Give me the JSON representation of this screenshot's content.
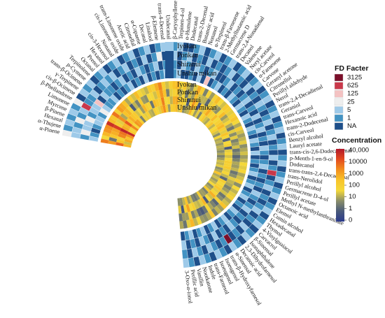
{
  "chart_data": {
    "type": "heatmap",
    "layout": "circular",
    "compounds": [
      "α-Pinene",
      "α-Thujene",
      "Hexanal",
      "β-Pinene",
      "Myrcene",
      "Limonene",
      "β-Phellandrene",
      "cis-β-Ocimene",
      "γ-Terpinene",
      "trans-β-Ocimene",
      "p-Cymene",
      "Terpinolene",
      "Octanal",
      "Prenol",
      "Hexanol",
      "cis-3-Hexenol",
      "Nonanal",
      "cis-Limonene oxide",
      "trans-Limonene oxide",
      "Acetic acid",
      "Citronellal",
      "α-Copaene",
      "Decanal",
      "Linalool",
      "β-Elemene",
      "trans-4-Decenal",
      "Undecanal",
      "β-Caryophyllene",
      "Terpinen-4-ol",
      "α-Humulene",
      "Dodecanal",
      "trans-2-Decenal",
      "Butanoic acid",
      "Nonanol",
      "α-Terpineol",
      "trans-β-Farnesene",
      "2-Methylbutanoic acid",
      "Germacrene D",
      "trans-2,4-Nonadienal",
      "Decanol",
      "Valencene",
      "Neryl acetate",
      "cis-Carveol",
      "α-Farnesene",
      "Carvone",
      "Geranyl acetone",
      "Citronellol",
      "Perillyl aldehyde",
      "Nerol",
      "trans-2,4-Decadienal",
      "Geraniol",
      "trans-Carveol",
      "Hexanoic acid",
      "trans-2-Dodecenal",
      "cis-Carveol",
      "Benzyl alcohol",
      "Lauryl acetate",
      "trans-cis-2,6-Dodecadienal",
      "p-Menth-1-en-9-ol",
      "Dodecanol",
      "trans-trans-2,4-Decadienal",
      "trans-Nerolidol",
      "Perillyl alcohol",
      "Germacrene D-4-ol",
      "Perillyl acetate",
      "Methyl N-methylanthranilate",
      "Octanoic acid",
      "Elemol",
      "Cumin alcohol",
      "Hexadecanal",
      "Thymol",
      "4-Vinylguaiacol",
      "Carvacrol",
      "β-Sinensal",
      "Isonaphthalene",
      "2,3-Dihydrofarnesol",
      "Decanoic acid",
      "α-Sinensal",
      "trans-β-Hydroxyfarnesol",
      "Isoeugenol",
      "Isoeugenol",
      "trans-Farnesol",
      "Indole",
      "Nootkatone",
      "Vanillin",
      "Perillic acid",
      "3-Oxo-α-ionol"
    ],
    "samples": [
      "Iyokan",
      "Ponkan",
      "Shiranui",
      "Unshiu mikan"
    ],
    "fd_legend": {
      "title": "FD Facter",
      "levels": [
        "3125",
        "625",
        "125",
        "25",
        "5",
        "1",
        "NA"
      ],
      "colors": [
        "#7b0f2a",
        "#c9384a",
        "#f4c2c2",
        "#eeeeee",
        "#9ecae9",
        "#4393c3",
        "#1e4f8a"
      ]
    },
    "fd_grid": [
      [
        3,
        4,
        5,
        4
      ],
      [
        5,
        4,
        3,
        5
      ],
      [
        4,
        5,
        4,
        6
      ],
      [
        5,
        3,
        4,
        5
      ],
      [
        4,
        5,
        3,
        4
      ],
      [
        5,
        4,
        5,
        4
      ],
      [
        3,
        1,
        4,
        5
      ],
      [
        6,
        5,
        4,
        3
      ],
      [
        4,
        5,
        2,
        4
      ],
      [
        5,
        4,
        6,
        5
      ],
      [
        4,
        6,
        4,
        5
      ],
      [
        6,
        5,
        5,
        4
      ],
      [
        5,
        4,
        5,
        6
      ],
      [
        4,
        5,
        6,
        5
      ],
      [
        6,
        4,
        5,
        6
      ],
      [
        5,
        6,
        4,
        5
      ],
      [
        4,
        5,
        6,
        4
      ],
      [
        6,
        4,
        5,
        6
      ],
      [
        5,
        6,
        6,
        5
      ],
      [
        4,
        5,
        4,
        6
      ],
      [
        6,
        6,
        5,
        4
      ],
      [
        5,
        4,
        6,
        6
      ],
      [
        4,
        6,
        5,
        5
      ],
      [
        6,
        5,
        4,
        6
      ],
      [
        5,
        3,
        6,
        5
      ],
      [
        4,
        6,
        5,
        4
      ],
      [
        6,
        5,
        6,
        6
      ],
      [
        5,
        4,
        5,
        5
      ],
      [
        4,
        6,
        6,
        4
      ],
      [
        6,
        5,
        4,
        6
      ],
      [
        6,
        4,
        5,
        6
      ],
      [
        5,
        6,
        6,
        5
      ],
      [
        4,
        5,
        4,
        6
      ],
      [
        6,
        6,
        5,
        4
      ],
      [
        5,
        4,
        6,
        6
      ],
      [
        4,
        6,
        5,
        2
      ],
      [
        6,
        5,
        4,
        6
      ],
      [
        5,
        6,
        6,
        5
      ],
      [
        4,
        5,
        6,
        4
      ],
      [
        6,
        4,
        5,
        6
      ],
      [
        5,
        6,
        4,
        5
      ],
      [
        4,
        5,
        6,
        6
      ],
      [
        6,
        6,
        5,
        4
      ],
      [
        5,
        4,
        6,
        5
      ],
      [
        4,
        6,
        5,
        6
      ],
      [
        6,
        5,
        4,
        4
      ],
      [
        5,
        6,
        6,
        5
      ],
      [
        4,
        4,
        5,
        6
      ],
      [
        6,
        5,
        6,
        4
      ],
      [
        5,
        6,
        4,
        5
      ],
      [
        4,
        5,
        6,
        6
      ],
      [
        6,
        4,
        5,
        4
      ],
      [
        5,
        6,
        4,
        5
      ],
      [
        4,
        5,
        6,
        6
      ],
      [
        6,
        4,
        5,
        4
      ],
      [
        5,
        6,
        6,
        5
      ],
      [
        4,
        5,
        4,
        6
      ],
      [
        6,
        6,
        5,
        4
      ],
      [
        5,
        4,
        6,
        6
      ],
      [
        4,
        6,
        5,
        5
      ],
      [
        6,
        5,
        4,
        6
      ],
      [
        5,
        1,
        6,
        5
      ],
      [
        4,
        6,
        5,
        4
      ],
      [
        6,
        5,
        6,
        6
      ],
      [
        5,
        4,
        5,
        5
      ],
      [
        4,
        6,
        6,
        4
      ],
      [
        6,
        5,
        4,
        6
      ],
      [
        5,
        6,
        5,
        5
      ],
      [
        4,
        5,
        6,
        4
      ],
      [
        6,
        4,
        5,
        6
      ],
      [
        5,
        6,
        4,
        5
      ],
      [
        4,
        5,
        6,
        6
      ],
      [
        6,
        6,
        5,
        4
      ],
      [
        5,
        4,
        6,
        5
      ],
      [
        4,
        6,
        5,
        6
      ],
      [
        6,
        5,
        4,
        4
      ],
      [
        5,
        6,
        6,
        5
      ],
      [
        4,
        0,
        5,
        6
      ],
      [
        6,
        5,
        6,
        4
      ],
      [
        5,
        6,
        4,
        5
      ],
      [
        4,
        5,
        6,
        6
      ],
      [
        6,
        4,
        5,
        4
      ],
      [
        5,
        6,
        4,
        5
      ],
      [
        4,
        5,
        6,
        6
      ],
      [
        6,
        4,
        5,
        4
      ],
      [
        5,
        6,
        6,
        5
      ],
      [
        4,
        5,
        4,
        6
      ]
    ],
    "concentration_legend": {
      "title": "Concentration",
      "ticks": [
        "40,000",
        "10000",
        "1000",
        "100",
        "10",
        "1",
        "0"
      ],
      "colors": [
        "#b2182b",
        "#e34a1f",
        "#f28f1e",
        "#f8c42a",
        "#f4d83a",
        "#8b8f6a",
        "#4a5a7a",
        "#2b3a8c"
      ]
    },
    "concentration_grid": [
      [
        3.2,
        2.8,
        3.5,
        2.4
      ],
      [
        1.6,
        0.8,
        2.2,
        1.4
      ],
      [
        2.4,
        2.1,
        1.8,
        2.6
      ],
      [
        2.9,
        2.5,
        3.1,
        2.2
      ],
      [
        3.0,
        2.7,
        3.3,
        2.9
      ],
      [
        4.2,
        4.0,
        4.4,
        4.3
      ],
      [
        2.3,
        1.9,
        2.6,
        2.0
      ],
      [
        2.1,
        1.5,
        2.4,
        1.8
      ],
      [
        3.3,
        3.0,
        3.6,
        3.1
      ],
      [
        1.8,
        1.2,
        2.0,
        1.6
      ],
      [
        2.8,
        2.2,
        2.5,
        2.9
      ],
      [
        2.6,
        2.4,
        2.1,
        2.7
      ],
      [
        2.2,
        1.7,
        2.0,
        1.9
      ],
      [
        1.2,
        0.6,
        1.4,
        0.9
      ],
      [
        1.9,
        1.3,
        1.6,
        1.8
      ],
      [
        1.4,
        0.9,
        1.1,
        1.5
      ],
      [
        2.3,
        2.0,
        2.4,
        1.9
      ],
      [
        1.7,
        1.1,
        1.9,
        1.3
      ],
      [
        1.5,
        1.0,
        1.8,
        1.2
      ],
      [
        1.3,
        1.6,
        0.8,
        1.9
      ],
      [
        2.0,
        1.6,
        2.3,
        1.7
      ],
      [
        1.8,
        1.4,
        2.1,
        1.5
      ],
      [
        2.5,
        2.2,
        2.0,
        2.4
      ],
      [
        3.1,
        2.9,
        3.2,
        3.0
      ],
      [
        1.9,
        2.2,
        1.6,
        2.0
      ],
      [
        1.4,
        0.9,
        1.7,
        1.1
      ],
      [
        1.8,
        1.5,
        1.3,
        1.9
      ],
      [
        2.2,
        1.8,
        2.5,
        2.0
      ],
      [
        2.4,
        2.1,
        2.6,
        2.3
      ],
      [
        1.6,
        1.2,
        1.9,
        1.4
      ],
      [
        2.1,
        1.7,
        1.9,
        2.2
      ],
      [
        1.3,
        0.8,
        1.6,
        1.0
      ],
      [
        1.0,
        1.4,
        0.6,
        1.2
      ],
      [
        1.5,
        1.1,
        1.8,
        1.3
      ],
      [
        2.6,
        2.3,
        2.8,
        2.4
      ],
      [
        1.9,
        1.4,
        2.2,
        1.6
      ],
      [
        0.9,
        1.3,
        0.5,
        1.1
      ],
      [
        1.7,
        1.3,
        2.0,
        1.5
      ],
      [
        1.1,
        0.7,
        1.4,
        0.9
      ],
      [
        1.8,
        1.5,
        2.1,
        1.6
      ],
      [
        2.3,
        1.9,
        2.6,
        2.0
      ],
      [
        1.6,
        1.2,
        1.9,
        1.4
      ],
      [
        1.4,
        1.0,
        1.7,
        1.2
      ],
      [
        2.0,
        1.6,
        2.3,
        1.7
      ],
      [
        1.9,
        2.3,
        1.6,
        2.1
      ],
      [
        1.5,
        1.1,
        1.8,
        1.3
      ],
      [
        1.8,
        1.4,
        2.1,
        1.6
      ],
      [
        2.1,
        1.7,
        2.4,
        1.9
      ],
      [
        1.6,
        1.2,
        1.9,
        1.4
      ],
      [
        1.2,
        0.8,
        1.5,
        1.0
      ],
      [
        1.9,
        1.5,
        2.2,
        1.7
      ],
      [
        1.4,
        1.0,
        1.7,
        1.2
      ],
      [
        1.1,
        1.5,
        0.7,
        1.3
      ],
      [
        1.3,
        0.9,
        1.6,
        1.1
      ],
      [
        1.5,
        1.1,
        1.8,
        1.3
      ],
      [
        1.0,
        1.4,
        0.6,
        1.2
      ],
      [
        1.2,
        0.8,
        1.5,
        1.0
      ],
      [
        1.4,
        1.0,
        1.7,
        1.2
      ],
      [
        1.1,
        0.7,
        1.4,
        0.9
      ],
      [
        1.3,
        0.9,
        1.6,
        1.1
      ],
      [
        1.6,
        1.2,
        1.9,
        1.4
      ],
      [
        1.5,
        1.1,
        1.8,
        1.3
      ],
      [
        1.7,
        1.3,
        2.0,
        1.5
      ],
      [
        1.2,
        0.8,
        1.5,
        1.0
      ],
      [
        1.4,
        1.0,
        1.7,
        1.2
      ],
      [
        1.9,
        1.5,
        1.3,
        2.2
      ],
      [
        1.0,
        1.3,
        0.7,
        1.2
      ],
      [
        1.6,
        1.2,
        1.9,
        1.4
      ],
      [
        1.3,
        0.9,
        1.6,
        1.1
      ],
      [
        1.5,
        1.1,
        1.8,
        1.3
      ],
      [
        1.8,
        1.4,
        2.1,
        1.6
      ],
      [
        1.2,
        0.8,
        1.5,
        1.0
      ],
      [
        1.4,
        1.0,
        1.7,
        1.2
      ],
      [
        2.2,
        1.8,
        2.5,
        2.0
      ],
      [
        1.1,
        0.7,
        1.4,
        0.9
      ],
      [
        1.3,
        0.9,
        1.6,
        1.1
      ],
      [
        0.9,
        1.2,
        0.6,
        1.1
      ],
      [
        2.1,
        1.7,
        2.4,
        1.9
      ],
      [
        1.2,
        0.8,
        1.5,
        1.0
      ],
      [
        1.0,
        0.6,
        1.3,
        0.8
      ],
      [
        1.1,
        0.7,
        1.4,
        0.9
      ],
      [
        1.6,
        1.2,
        1.9,
        1.4
      ],
      [
        1.3,
        0.9,
        1.6,
        1.1
      ],
      [
        2.4,
        2.0,
        2.7,
        2.2
      ],
      [
        1.5,
        1.1,
        1.8,
        1.3
      ],
      [
        0.8,
        1.1,
        0.5,
        1.0
      ],
      [
        1.2,
        0.8,
        1.5,
        1.0
      ]
    ]
  }
}
